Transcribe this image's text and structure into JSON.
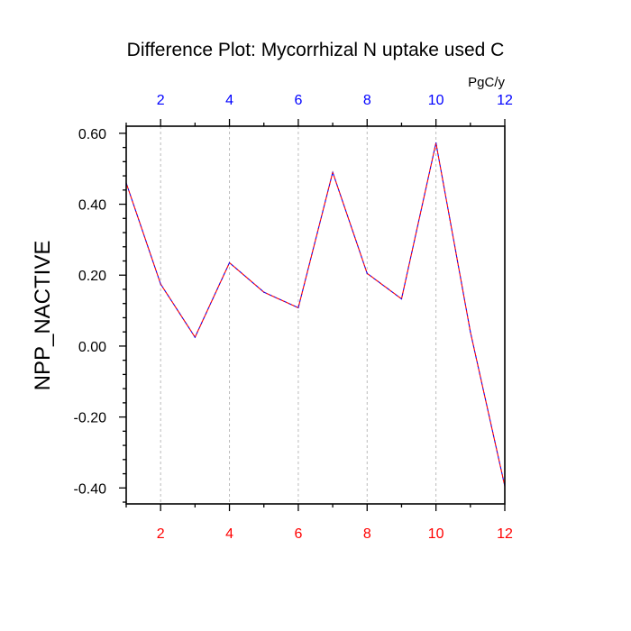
{
  "chart_data": {
    "type": "line",
    "title": "Difference Plot: Mycorrhizal N uptake used C",
    "ylabel": "NPP_NACTIVE",
    "top_axis_unit": "PgC/y",
    "x": [
      1,
      2,
      3,
      4,
      5,
      6,
      7,
      8,
      9,
      10,
      11,
      12
    ],
    "series": [
      {
        "values": [
          0.46,
          0.175,
          0.025,
          0.235,
          0.152,
          0.108,
          0.49,
          0.205,
          0.133,
          0.573,
          0.04,
          -0.395
        ],
        "color": "#0000ff",
        "overlay_color": "#ff0000"
      }
    ],
    "xlim": [
      1,
      12
    ],
    "ylim": [
      -0.445,
      0.62
    ],
    "x_ticks": [
      2,
      4,
      6,
      8,
      10,
      12
    ],
    "x_tick_labels": [
      "2",
      "4",
      "6",
      "8",
      "10",
      "12"
    ],
    "y_ticks": [
      0.6,
      0.4,
      0.2,
      0.0,
      -0.2,
      -0.4
    ],
    "y_tick_labels": [
      "0.60",
      "0.40",
      "0.20",
      "0.00",
      "-0.20",
      "-0.40"
    ],
    "y_minor_step": 0.04,
    "bottom_tick_color": "#ff0000",
    "top_tick_color": "#0000ff",
    "grid": "vertical dotted at major x ticks"
  }
}
